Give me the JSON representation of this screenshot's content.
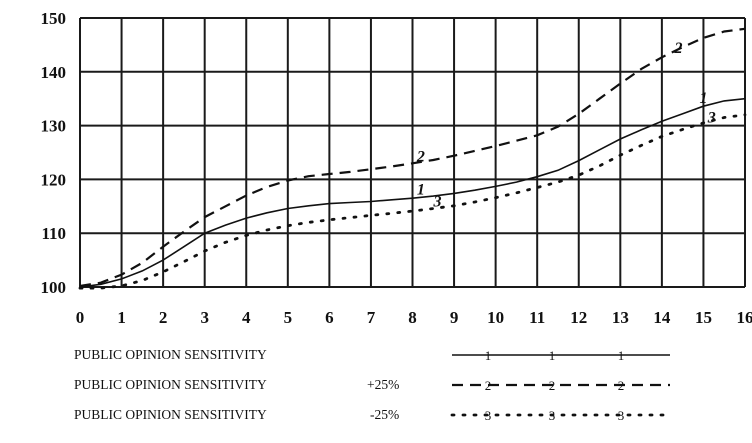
{
  "chart_data": {
    "type": "line",
    "title": "",
    "xlabel": "",
    "ylabel": "",
    "xlim": [
      0,
      16
    ],
    "ylim": [
      100,
      150
    ],
    "x_ticks": [
      "0",
      "1",
      "2",
      "3",
      "4",
      "5",
      "6",
      "7",
      "8",
      "9",
      "10",
      "11",
      "12",
      "13",
      "14",
      "15",
      "16"
    ],
    "y_ticks": [
      "100",
      "110",
      "120",
      "130",
      "140",
      "150"
    ],
    "grid": true,
    "legend_position": "bottom",
    "series": [
      {
        "name": "PUBLIC OPINION SENSITIVITY",
        "modifier": "",
        "marker": "1",
        "style": "solid",
        "x": [
          0,
          0.5,
          1,
          1.5,
          2,
          2.5,
          3,
          3.5,
          4,
          4.5,
          5,
          5.5,
          6,
          6.5,
          7,
          7.5,
          8,
          8.5,
          9,
          9.5,
          10,
          10.5,
          11,
          11.5,
          12,
          12.5,
          13,
          13.5,
          14,
          14.5,
          15,
          15.5,
          16
        ],
        "values": [
          100,
          100.5,
          101.5,
          103,
          105,
          107.5,
          110,
          111.5,
          112.8,
          113.8,
          114.6,
          115.1,
          115.5,
          115.7,
          115.9,
          116.2,
          116.5,
          116.9,
          117.4,
          118,
          118.7,
          119.5,
          120.5,
          121.7,
          123.5,
          125.5,
          127.5,
          129.2,
          130.8,
          132.2,
          133.6,
          134.6,
          135
        ]
      },
      {
        "name": "PUBLIC OPINION SENSITIVITY",
        "modifier": "+25%",
        "marker": "2",
        "style": "dashed",
        "x": [
          0,
          0.5,
          1,
          1.5,
          2,
          2.5,
          3,
          3.5,
          4,
          4.5,
          5,
          5.5,
          6,
          6.5,
          7,
          7.5,
          8,
          8.5,
          9,
          9.5,
          10,
          10.5,
          11,
          11.5,
          12,
          12.5,
          13,
          13.5,
          14,
          14.5,
          15,
          15.5,
          16
        ],
        "values": [
          100.2,
          100.8,
          102.3,
          104.5,
          107.5,
          110.3,
          113,
          115,
          117,
          118.6,
          119.8,
          120.6,
          121,
          121.4,
          121.9,
          122.4,
          123,
          123.6,
          124.4,
          125.3,
          126.2,
          127.2,
          128.2,
          129.8,
          132.2,
          135,
          137.8,
          140.5,
          142.7,
          144.6,
          146.3,
          147.5,
          148
        ]
      },
      {
        "name": "PUBLIC OPINION SENSITIVITY",
        "modifier": "-25%",
        "marker": "3",
        "style": "dotted",
        "x": [
          0,
          0.5,
          1,
          1.5,
          2,
          2.5,
          3,
          3.5,
          4,
          4.5,
          5,
          5.5,
          6,
          6.5,
          7,
          7.5,
          8,
          8.5,
          9,
          9.5,
          10,
          10.5,
          11,
          11.5,
          12,
          12.5,
          13,
          13.5,
          14,
          14.5,
          15,
          15.5,
          16
        ],
        "values": [
          99.8,
          99.8,
          100.2,
          101.2,
          102.8,
          104.7,
          106.7,
          108.3,
          109.6,
          110.6,
          111.4,
          112,
          112.5,
          112.9,
          113.3,
          113.7,
          114.1,
          114.6,
          115.1,
          115.8,
          116.6,
          117.5,
          118.5,
          119.5,
          120.8,
          122.5,
          124.5,
          126.3,
          128,
          129.3,
          130.5,
          131.5,
          132
        ]
      }
    ]
  }
}
